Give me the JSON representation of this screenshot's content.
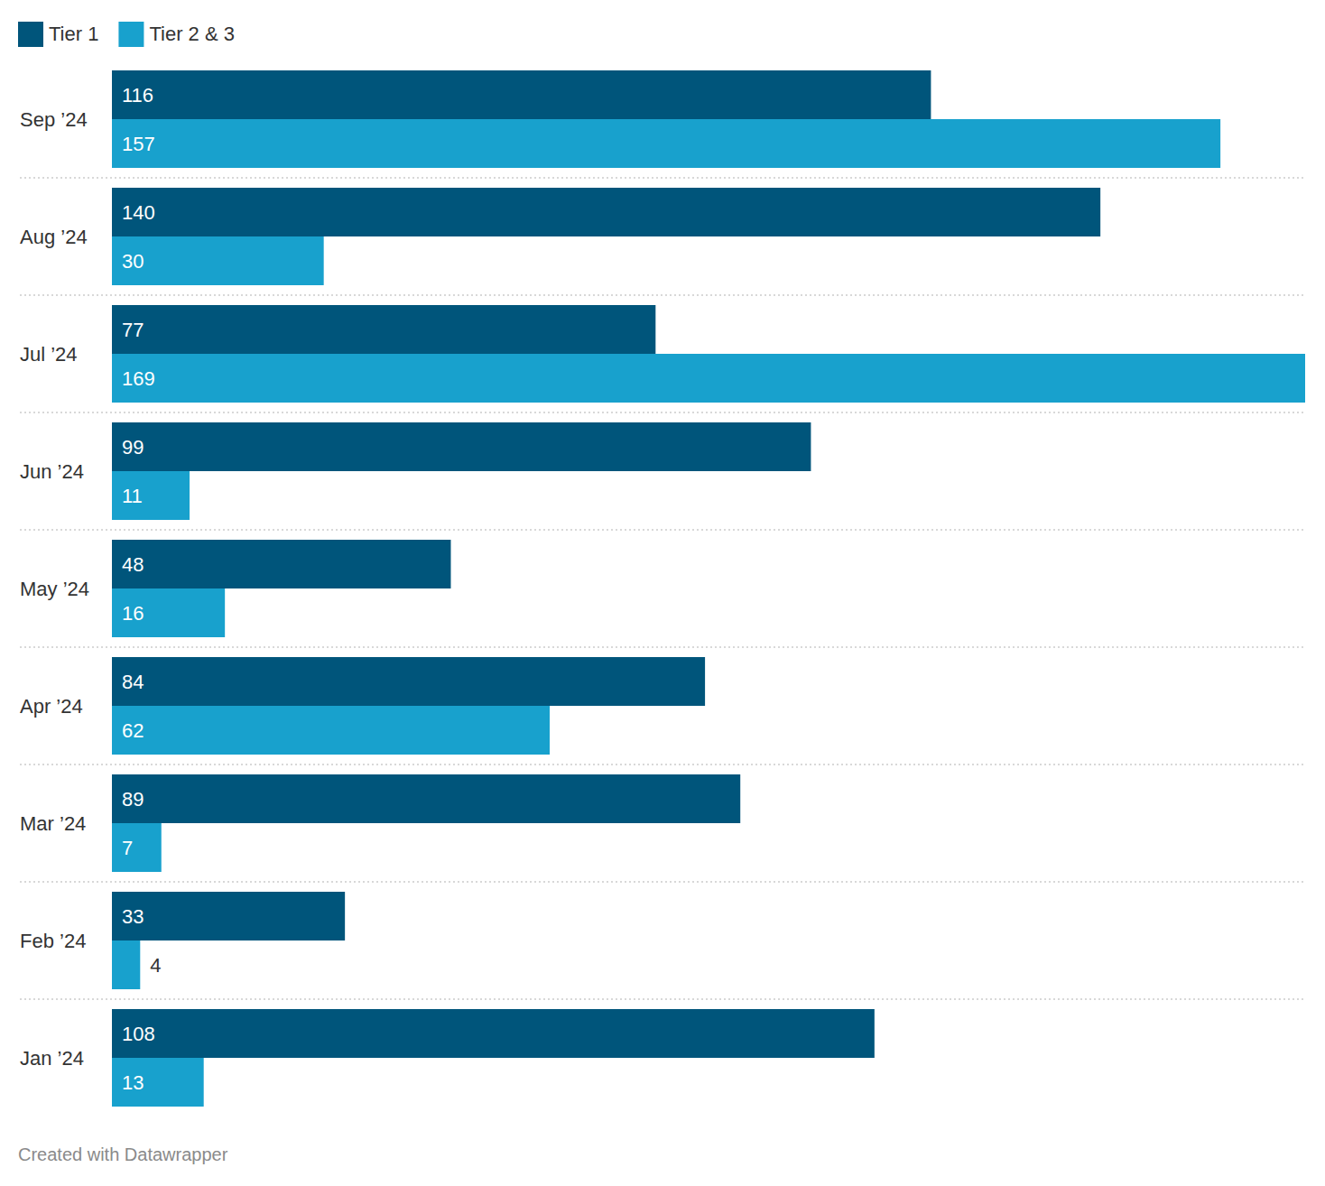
{
  "chart_data": {
    "type": "bar",
    "orientation": "horizontal",
    "data_labels": true,
    "tick_labels": "y",
    "grid": false,
    "legend": "top-left",
    "categories": [
      "Sep ’24",
      "Aug ’24",
      "Jul ’24",
      "Jun ’24",
      "May ’24",
      "Apr ’24",
      "Mar ’24",
      "Feb ’24",
      "Jan ’24"
    ],
    "series": [
      {
        "name": "Tier 1",
        "color": "#00557b",
        "values": [
          116,
          140,
          77,
          99,
          48,
          84,
          89,
          33,
          108
        ]
      },
      {
        "name": "Tier 2 & 3",
        "color": "#18a1cd",
        "values": [
          157,
          30,
          169,
          11,
          16,
          62,
          7,
          4,
          13
        ]
      }
    ],
    "xlim": [
      0,
      169
    ],
    "annotations": [
      "Created with Datawrapper"
    ]
  }
}
